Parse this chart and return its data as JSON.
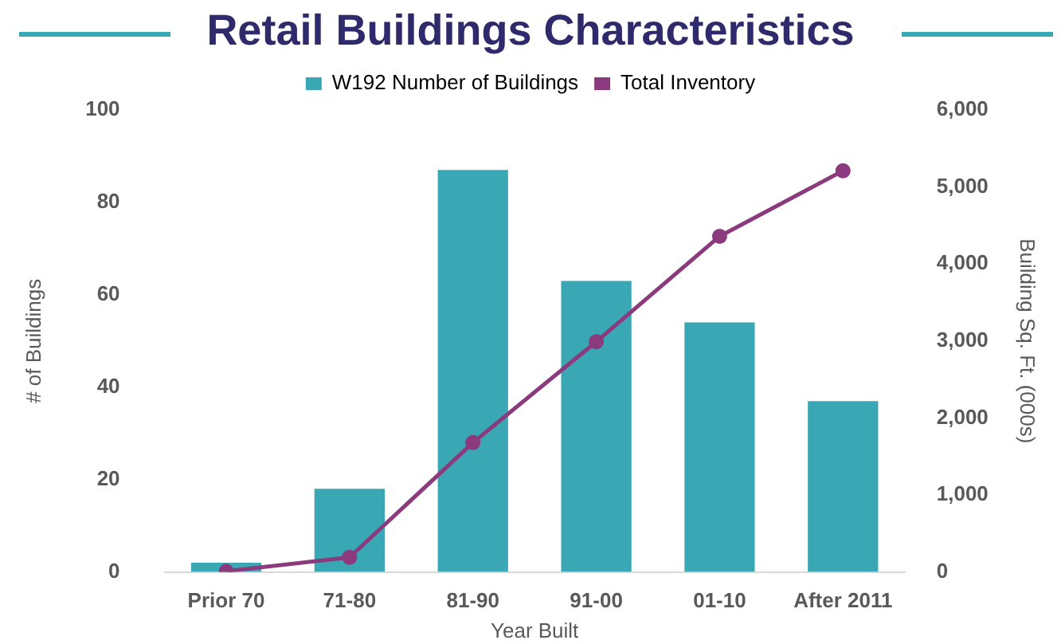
{
  "chart_data": {
    "type": "bar",
    "title": "Retail Buildings Characteristics",
    "xlabel": "Year Built",
    "ylabel": "# of Buildings",
    "y2label": "Building Sq. Ft. (000s)",
    "categories": [
      "Prior 70",
      "71-80",
      "81-90",
      "91-00",
      "01-10",
      "After 2011"
    ],
    "series": [
      {
        "name": "W192 Number of Buildings",
        "color": "#3aa8b4",
        "values": [
          2,
          18,
          87,
          63,
          54,
          37
        ]
      },
      {
        "name": "Total Inventory",
        "type": "line",
        "axis": "y2",
        "color": "#8b3a7e",
        "marker": "circle",
        "values": [
          10,
          190,
          1680,
          2990,
          4360,
          5210
        ]
      }
    ],
    "ylim": [
      0,
      100
    ],
    "yticks": [
      0,
      20,
      40,
      60,
      80,
      100
    ],
    "y2lim": [
      0,
      6000
    ],
    "y2ticks": [
      {
        "value": 0,
        "label": "0"
      },
      {
        "value": 1000,
        "label": "1,000"
      },
      {
        "value": 2000,
        "label": "2,000"
      },
      {
        "value": 3000,
        "label": "3,000"
      },
      {
        "value": 4000,
        "label": "4,000"
      },
      {
        "value": 5000,
        "label": "5,000"
      },
      {
        "value": 6000,
        "label": "6,000"
      }
    ],
    "grid": false,
    "legend": "top"
  }
}
